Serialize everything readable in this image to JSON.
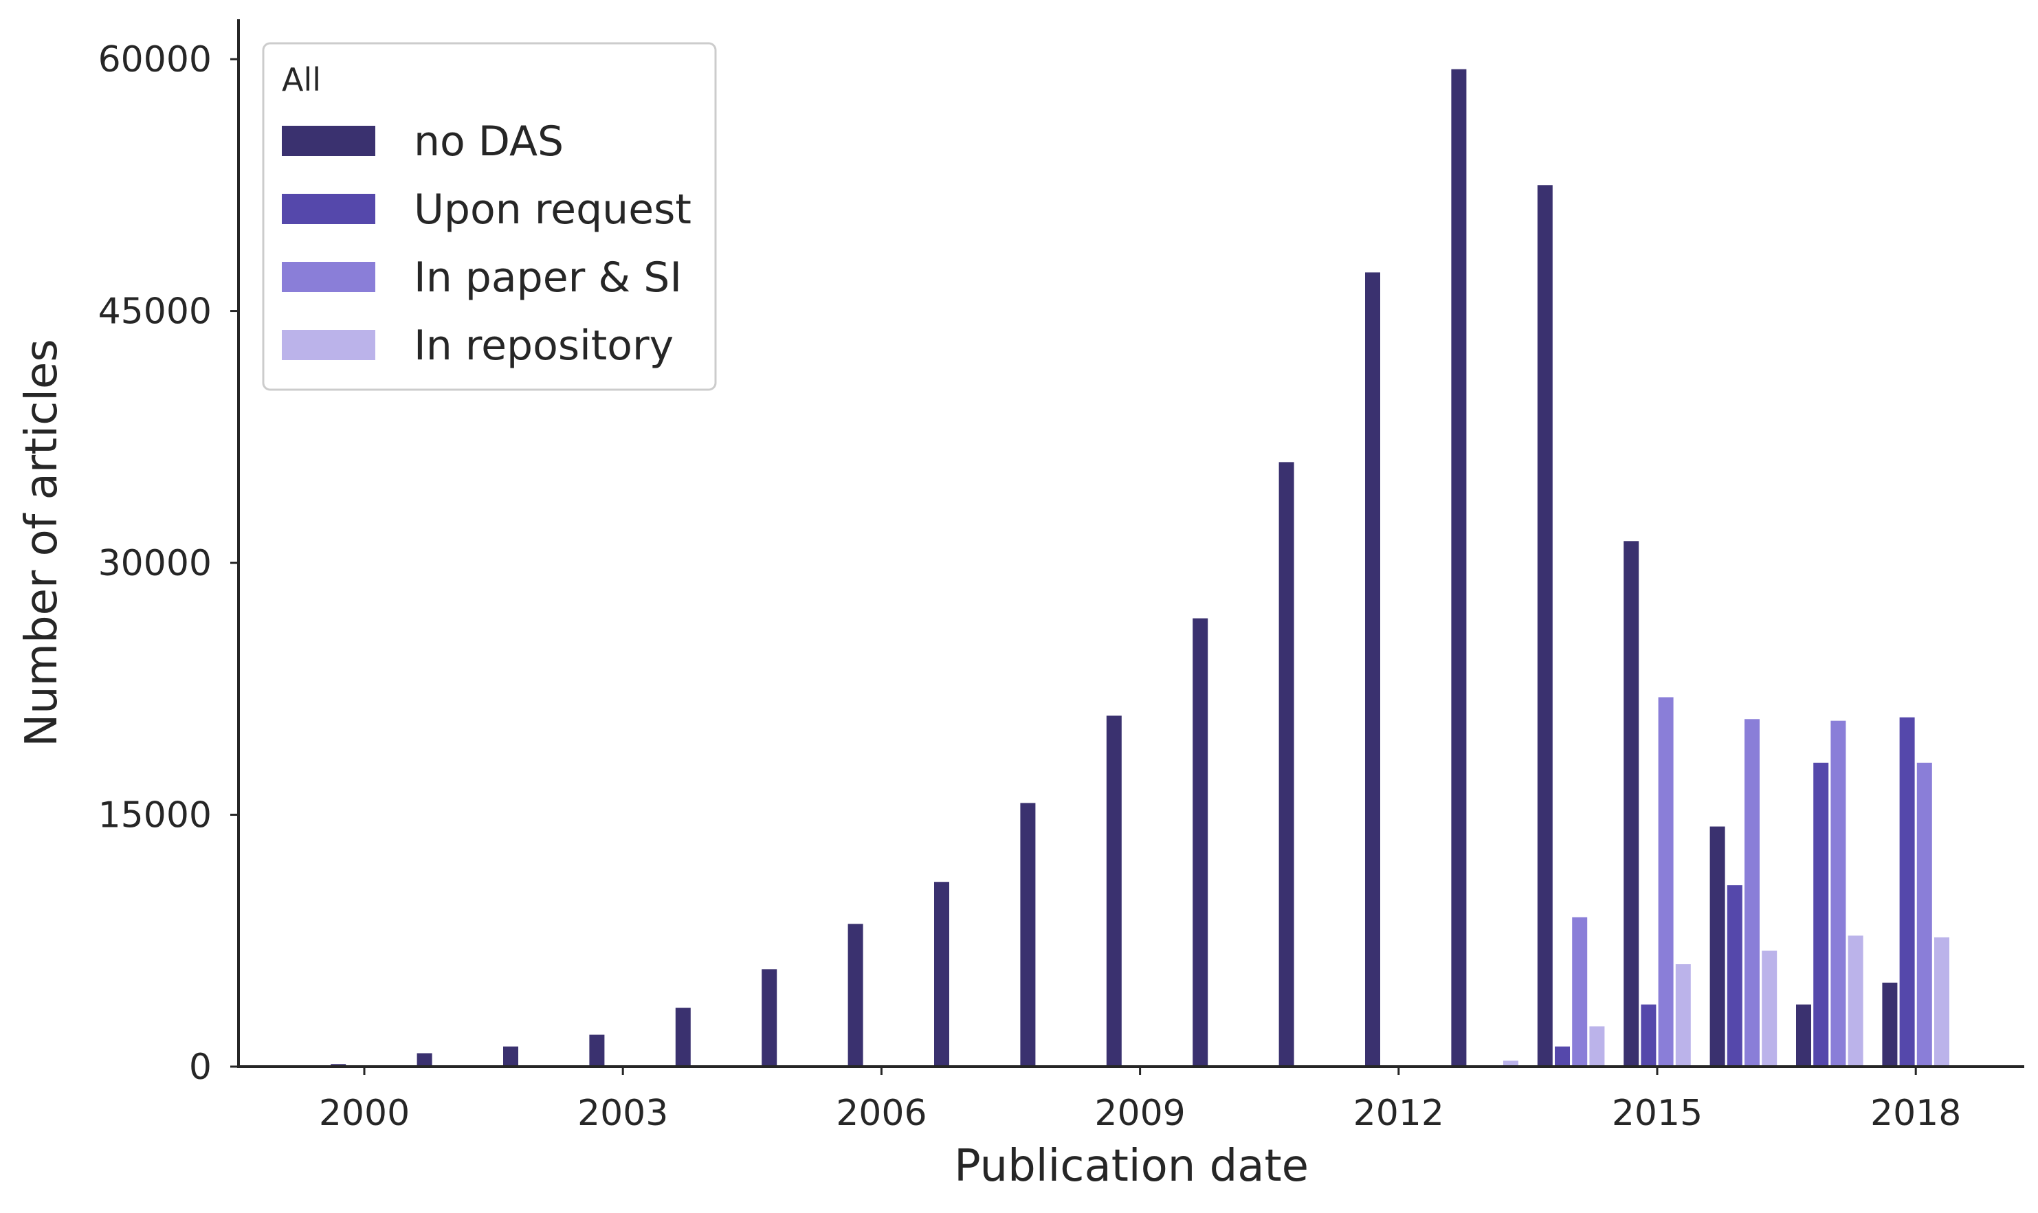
{
  "chart_data": {
    "type": "bar",
    "xlabel": "Publication date",
    "ylabel": "Number of articles",
    "ylim": [
      0,
      62500
    ],
    "yticks": [
      "0",
      "15000",
      "30000",
      "45000",
      "60000"
    ],
    "ytick_values": [
      0,
      15000,
      30000,
      45000,
      60000
    ],
    "xticks": [
      "2000",
      "2003",
      "2006",
      "2009",
      "2012",
      "2015",
      "2018"
    ],
    "xtick_years": [
      2000,
      2003,
      2006,
      2009,
      2012,
      2015,
      2018
    ],
    "categories": [
      "2000",
      "2001",
      "2002",
      "2003",
      "2004",
      "2005",
      "2006",
      "2007",
      "2008",
      "2009",
      "2010",
      "2011",
      "2012",
      "2013",
      "2014",
      "2015",
      "2016",
      "2017",
      "2018"
    ],
    "legend": {
      "title": "All",
      "position": "top-left"
    },
    "grid": false,
    "series": [
      {
        "name": "no DAS",
        "color": "#3a316f",
        "values": [
          150,
          800,
          1200,
          1900,
          3500,
          5800,
          8500,
          11000,
          15700,
          20900,
          26700,
          36000,
          47300,
          59400,
          52500,
          31300,
          14300,
          3700,
          5000
        ]
      },
      {
        "name": "Upon request",
        "color": "#5548ab",
        "values": [
          0,
          0,
          0,
          0,
          0,
          0,
          0,
          0,
          0,
          0,
          0,
          0,
          0,
          0,
          1200,
          3700,
          10800,
          18100,
          20800
        ]
      },
      {
        "name": "In paper & SI",
        "color": "#8a7ed8",
        "values": [
          0,
          0,
          0,
          0,
          0,
          0,
          0,
          0,
          0,
          0,
          0,
          0,
          0,
          0,
          8900,
          22000,
          20700,
          20600,
          18100
        ]
      },
      {
        "name": "In repository",
        "color": "#bbb3ea",
        "values": [
          0,
          0,
          0,
          0,
          0,
          0,
          0,
          0,
          0,
          0,
          0,
          0,
          0,
          350,
          2400,
          6100,
          6900,
          7800,
          7700
        ]
      }
    ]
  }
}
